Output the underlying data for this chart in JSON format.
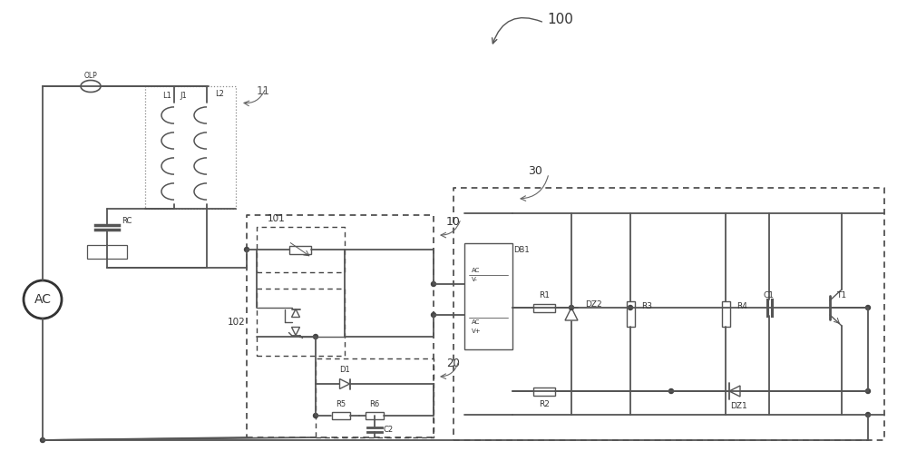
{
  "bg_color": "#ffffff",
  "line_color": "#555555",
  "figsize": [
    10.0,
    5.19
  ],
  "dpi": 100,
  "labels": {
    "100": "100",
    "10": "10",
    "11": "11",
    "20": "20",
    "30": "30",
    "101": "101",
    "102": "102",
    "AC": "AC",
    "OLP": "OLP",
    "RC": "RC",
    "L1": "L1",
    "L2": "L2",
    "J1": "J1",
    "DB1": "DB1",
    "DZ1": "DZ1",
    "DZ2": "DZ2",
    "R1": "R1",
    "R2": "R2",
    "R3": "R3",
    "R4": "R4",
    "R5": "R5",
    "R6": "R6",
    "C1": "C1",
    "C2": "C2",
    "D1": "D1",
    "T1": "T1"
  }
}
